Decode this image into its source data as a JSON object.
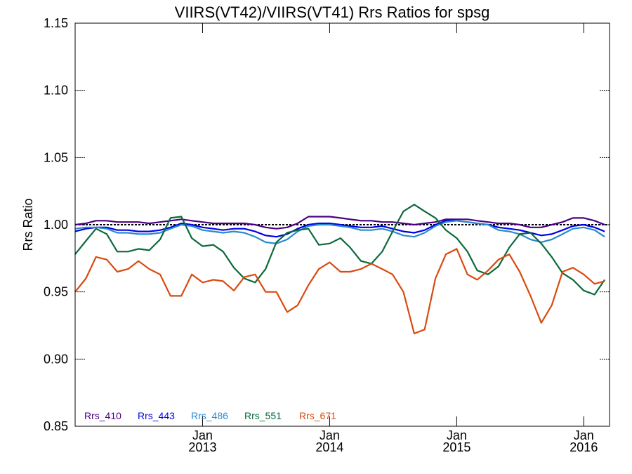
{
  "chart_data": {
    "type": "line",
    "title": "VIIRS(VT42)/VIIRS(VT41)  Rrs Ratios for spsg",
    "xlabel": "",
    "ylabel": "Rrs Ratio",
    "ylim": [
      0.85,
      1.15
    ],
    "xlim": [
      "2012-01-01",
      "2016-03-15"
    ],
    "yticks": [
      0.85,
      0.9,
      0.95,
      1.0,
      1.05,
      1.1,
      1.15
    ],
    "ytick_labels": [
      "0.85",
      "0.90",
      "0.95",
      "1.00",
      "1.05",
      "1.10",
      "1.15"
    ],
    "xticks": [
      {
        "date": "2013-01-01",
        "month": "Jan",
        "year": "2013"
      },
      {
        "date": "2014-01-01",
        "month": "Jan",
        "year": "2014"
      },
      {
        "date": "2015-01-01",
        "month": "Jan",
        "year": "2015"
      },
      {
        "date": "2016-01-01",
        "month": "Jan",
        "year": "2016"
      }
    ],
    "reference_line": 1.0,
    "legend_placement": "bottom-left",
    "x": [
      "2012-01-01",
      "2012-02-01",
      "2012-03-01",
      "2012-04-01",
      "2012-05-01",
      "2012-06-01",
      "2012-07-01",
      "2012-08-01",
      "2012-09-01",
      "2012-10-01",
      "2012-11-01",
      "2012-12-01",
      "2013-01-01",
      "2013-02-01",
      "2013-03-01",
      "2013-04-01",
      "2013-05-01",
      "2013-06-01",
      "2013-07-01",
      "2013-08-01",
      "2013-09-01",
      "2013-10-01",
      "2013-11-01",
      "2013-12-01",
      "2014-01-01",
      "2014-02-01",
      "2014-03-01",
      "2014-04-01",
      "2014-05-01",
      "2014-06-01",
      "2014-07-01",
      "2014-08-01",
      "2014-09-01",
      "2014-10-01",
      "2014-11-01",
      "2014-12-01",
      "2015-01-01",
      "2015-02-01",
      "2015-03-01",
      "2015-04-01",
      "2015-05-01",
      "2015-06-01",
      "2015-07-01",
      "2015-08-01",
      "2015-09-01",
      "2015-10-01",
      "2015-11-01",
      "2015-12-01",
      "2016-01-01",
      "2016-02-01",
      "2016-03-01"
    ],
    "series": [
      {
        "name": "Rrs_410",
        "color": "#4b0082",
        "values": [
          1.0,
          1.001,
          1.003,
          1.003,
          1.002,
          1.002,
          1.002,
          1.001,
          1.002,
          1.003,
          1.004,
          1.003,
          1.002,
          1.001,
          1.001,
          1.001,
          1.001,
          1.0,
          0.998,
          0.997,
          0.998,
          1.001,
          1.006,
          1.006,
          1.006,
          1.005,
          1.004,
          1.003,
          1.003,
          1.002,
          1.002,
          1.001,
          1.0,
          1.001,
          1.002,
          1.004,
          1.004,
          1.004,
          1.003,
          1.002,
          1.001,
          1.001,
          1.0,
          0.998,
          0.998,
          1.0,
          1.002,
          1.005,
          1.005,
          1.003,
          1.0
        ]
      },
      {
        "name": "Rrs_443",
        "color": "#0000e6",
        "values": [
          0.995,
          0.997,
          0.998,
          0.998,
          0.996,
          0.996,
          0.995,
          0.995,
          0.996,
          0.998,
          1.001,
          1.0,
          0.998,
          0.997,
          0.996,
          0.997,
          0.997,
          0.995,
          0.992,
          0.991,
          0.993,
          0.997,
          1.0,
          1.001,
          1.001,
          1.0,
          0.999,
          0.998,
          0.998,
          0.999,
          0.997,
          0.995,
          0.994,
          0.996,
          1.0,
          1.003,
          1.003,
          1.002,
          1.001,
          1.0,
          0.998,
          0.997,
          0.996,
          0.994,
          0.992,
          0.993,
          0.996,
          0.999,
          1.0,
          0.998,
          0.995
        ]
      },
      {
        "name": "Rrs_486",
        "color": "#2a8ad0",
        "values": [
          0.997,
          0.998,
          0.998,
          0.997,
          0.994,
          0.994,
          0.993,
          0.993,
          0.994,
          0.997,
          1.0,
          0.999,
          0.996,
          0.995,
          0.994,
          0.995,
          0.994,
          0.991,
          0.987,
          0.986,
          0.989,
          0.995,
          0.999,
          1.0,
          1.0,
          0.999,
          0.998,
          0.996,
          0.996,
          0.997,
          0.995,
          0.992,
          0.991,
          0.994,
          0.999,
          1.002,
          1.003,
          1.002,
          1.001,
          1.0,
          0.996,
          0.995,
          0.993,
          0.989,
          0.987,
          0.989,
          0.993,
          0.997,
          0.998,
          0.996,
          0.991
        ]
      },
      {
        "name": "Rrs_551",
        "color": "#0a6a3a",
        "values": [
          0.978,
          0.988,
          0.997,
          0.993,
          0.98,
          0.98,
          0.982,
          0.981,
          0.989,
          1.005,
          1.006,
          0.99,
          0.984,
          0.985,
          0.98,
          0.968,
          0.96,
          0.957,
          0.967,
          0.987,
          0.994,
          0.996,
          0.997,
          0.985,
          0.986,
          0.99,
          0.983,
          0.973,
          0.971,
          0.98,
          0.995,
          1.01,
          1.015,
          1.01,
          1.005,
          0.996,
          0.99,
          0.98,
          0.966,
          0.963,
          0.969,
          0.983,
          0.993,
          0.994,
          0.986,
          0.976,
          0.964,
          0.959,
          0.951,
          0.948,
          0.959
        ]
      },
      {
        "name": "Rrs_671",
        "color": "#d94a10",
        "values": [
          0.95,
          0.96,
          0.976,
          0.974,
          0.965,
          0.967,
          0.973,
          0.967,
          0.963,
          0.947,
          0.947,
          0.963,
          0.957,
          0.959,
          0.958,
          0.951,
          0.961,
          0.963,
          0.95,
          0.95,
          0.935,
          0.94,
          0.955,
          0.967,
          0.972,
          0.965,
          0.965,
          0.967,
          0.971,
          0.967,
          0.963,
          0.95,
          0.919,
          0.922,
          0.96,
          0.978,
          0.982,
          0.963,
          0.959,
          0.966,
          0.974,
          0.978,
          0.965,
          0.947,
          0.927,
          0.94,
          0.965,
          0.968,
          0.963,
          0.956,
          0.958
        ]
      }
    ]
  }
}
